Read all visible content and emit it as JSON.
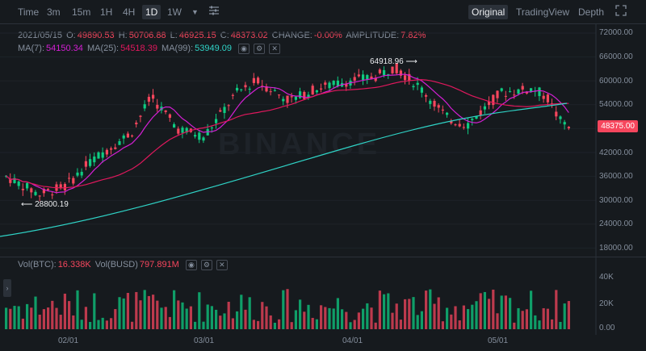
{
  "toolbar": {
    "intervals": [
      "Time",
      "3m",
      "15m",
      "1H",
      "4H",
      "1D",
      "1W"
    ],
    "active_interval": "1D",
    "views": [
      "Original",
      "TradingView",
      "Depth"
    ],
    "active_view": "Original"
  },
  "ohlc": {
    "date": "2021/05/15",
    "o_label": "O:",
    "o": "49890.53",
    "h_label": "H:",
    "h": "50706.88",
    "l_label": "L:",
    "l": "46925.15",
    "c_label": "C:",
    "c": "48373.02",
    "change_label": "CHANGE:",
    "change": "-0.00%",
    "amp_label": "AMPLITUDE:",
    "amp": "7.82%"
  },
  "ma": {
    "ma7_label": "MA(7):",
    "ma7": "54150.34",
    "ma25_label": "MA(25):",
    "ma25": "54518.39",
    "ma99_label": "MA(99):",
    "ma99": "53949.09"
  },
  "volume": {
    "btc_label": "Vol(BTC):",
    "btc": "16.338K",
    "busd_label": "Vol(BUSD)",
    "busd": "797.891M"
  },
  "price_axis": [
    "72000.00",
    "66000.00",
    "60000.00",
    "54000.00",
    "48000.00",
    "42000.00",
    "36000.00",
    "30000.00",
    "24000.00",
    "18000.00"
  ],
  "volume_axis": [
    "40K",
    "20K",
    "0.00"
  ],
  "date_axis": [
    "02/01",
    "03/01",
    "04/01",
    "05/01"
  ],
  "last_price": "48375.00",
  "annotations": {
    "high": "64918.96",
    "low": "28800.19"
  },
  "watermark": "BINANCE",
  "colors": {
    "up": "#0ecb81",
    "down": "#f6465d",
    "ma7": "#d41fd4",
    "ma25": "#e0185d",
    "ma99": "#2fd3c6"
  },
  "chart_data": {
    "type": "candlestick",
    "ylim": [
      16000,
      74000
    ],
    "count": 135,
    "highest": 64918.96,
    "lowest": 28800.19,
    "last": 48375.0,
    "volume_ylim": [
      0,
      50000
    ]
  }
}
